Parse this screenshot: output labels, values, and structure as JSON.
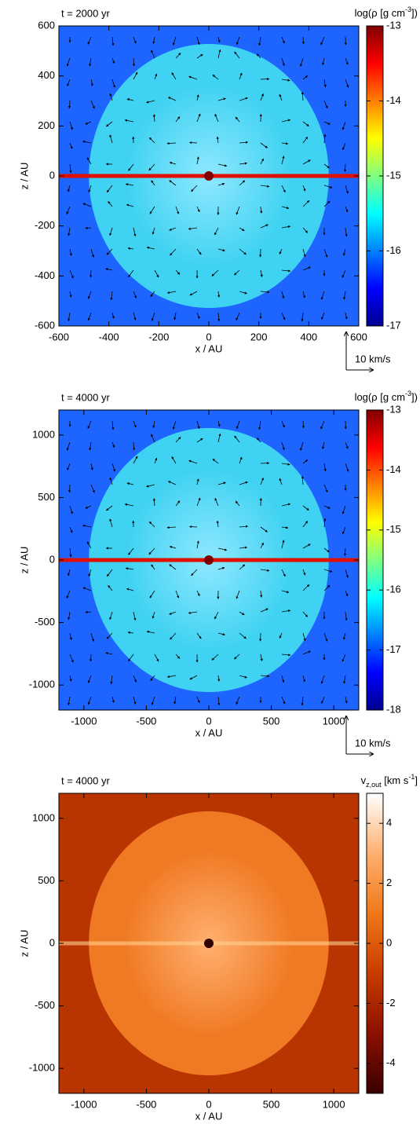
{
  "chart_data": [
    {
      "type": "heatmap",
      "title": "t = 2000 yr",
      "xlabel": "x / AU",
      "ylabel": "z / AU",
      "xlim": [
        -600,
        600
      ],
      "ylim": [
        -600,
        600
      ],
      "xticks": [
        -600,
        -400,
        -200,
        0,
        200,
        400,
        600
      ],
      "yticks": [
        -600,
        -400,
        -200,
        0,
        200,
        400,
        600
      ],
      "colorbar": {
        "label": [
          {
            "text": "log(ρ [g cm"
          },
          {
            "text": "-3",
            "script": "sup"
          },
          {
            "text": "])"
          }
        ],
        "lim": [
          -17,
          -13
        ],
        "ticks": [
          -17,
          -16,
          -15,
          -14,
          -13
        ],
        "colormap": [
          "#00008f",
          "#0000ff",
          "#0080ff",
          "#00ffff",
          "#80ff80",
          "#ffff00",
          "#ff8000",
          "#ff0000",
          "#800000"
        ]
      },
      "vector_key": "10 km/s"
    },
    {
      "type": "heatmap",
      "title": "t = 4000 yr",
      "xlabel": "x / AU",
      "ylabel": "z / AU",
      "xlim": [
        -1200,
        1200
      ],
      "ylim": [
        -1200,
        1200
      ],
      "xticks": [
        -1000,
        -500,
        0,
        500,
        1000
      ],
      "yticks": [
        -1000,
        -500,
        0,
        500,
        1000
      ],
      "colorbar": {
        "label": [
          {
            "text": "log(ρ [g cm"
          },
          {
            "text": "-3",
            "script": "sup"
          },
          {
            "text": "])"
          }
        ],
        "lim": [
          -18,
          -13
        ],
        "ticks": [
          -18,
          -17,
          -16,
          -15,
          -14,
          -13
        ],
        "colormap": [
          "#00008f",
          "#0000ff",
          "#0080ff",
          "#00ffff",
          "#80ff80",
          "#ffff00",
          "#ff8000",
          "#ff0000",
          "#800000"
        ]
      },
      "vector_key": "10 km/s"
    },
    {
      "type": "heatmap",
      "title": "t = 4000 yr",
      "xlabel": "x / AU",
      "ylabel": "z / AU",
      "xlim": [
        -1200,
        1200
      ],
      "ylim": [
        -1200,
        1200
      ],
      "xticks": [
        -1000,
        -500,
        0,
        500,
        1000
      ],
      "yticks": [
        -1000,
        -500,
        0,
        500,
        1000
      ],
      "colorbar": {
        "label": [
          {
            "text": "v"
          },
          {
            "text": "z,out",
            "script": "sub"
          },
          {
            "text": " [km s"
          },
          {
            "text": "-1",
            "script": "sup"
          },
          {
            "text": "]"
          }
        ],
        "lim": [
          -5,
          5
        ],
        "ticks": [
          -4,
          -2,
          0,
          2,
          4
        ],
        "colormap": [
          "#3a0000",
          "#8c1000",
          "#c83c00",
          "#f07818",
          "#ffb070",
          "#ffffff"
        ]
      }
    }
  ]
}
